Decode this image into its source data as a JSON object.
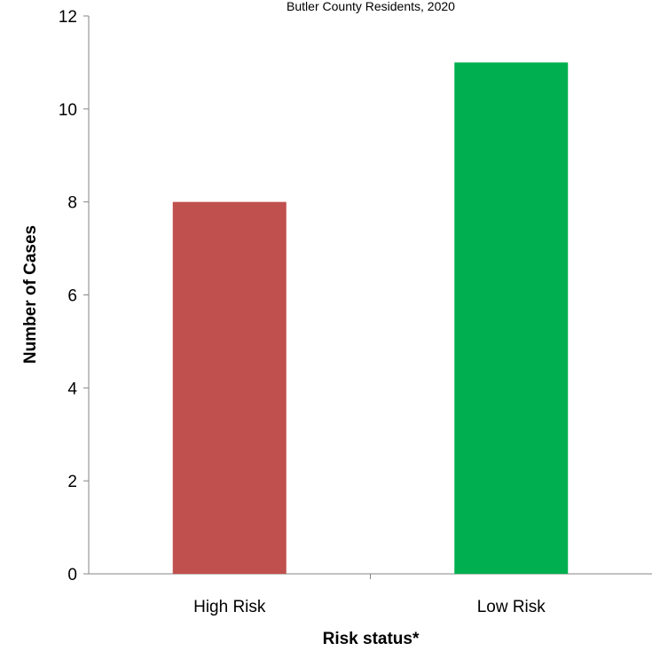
{
  "chart_data": {
    "type": "bar",
    "subtitle": "Butler County Residents, 2020",
    "categories": [
      "High Risk",
      "Low Risk"
    ],
    "values": [
      8,
      11
    ],
    "colors": [
      "#c0504d",
      "#00b050"
    ],
    "xlabel": "Risk status*",
    "ylabel": "Number of Cases",
    "ylim": [
      0,
      12
    ],
    "yticks": [
      0,
      2,
      4,
      6,
      8,
      10,
      12
    ],
    "grid": false
  }
}
